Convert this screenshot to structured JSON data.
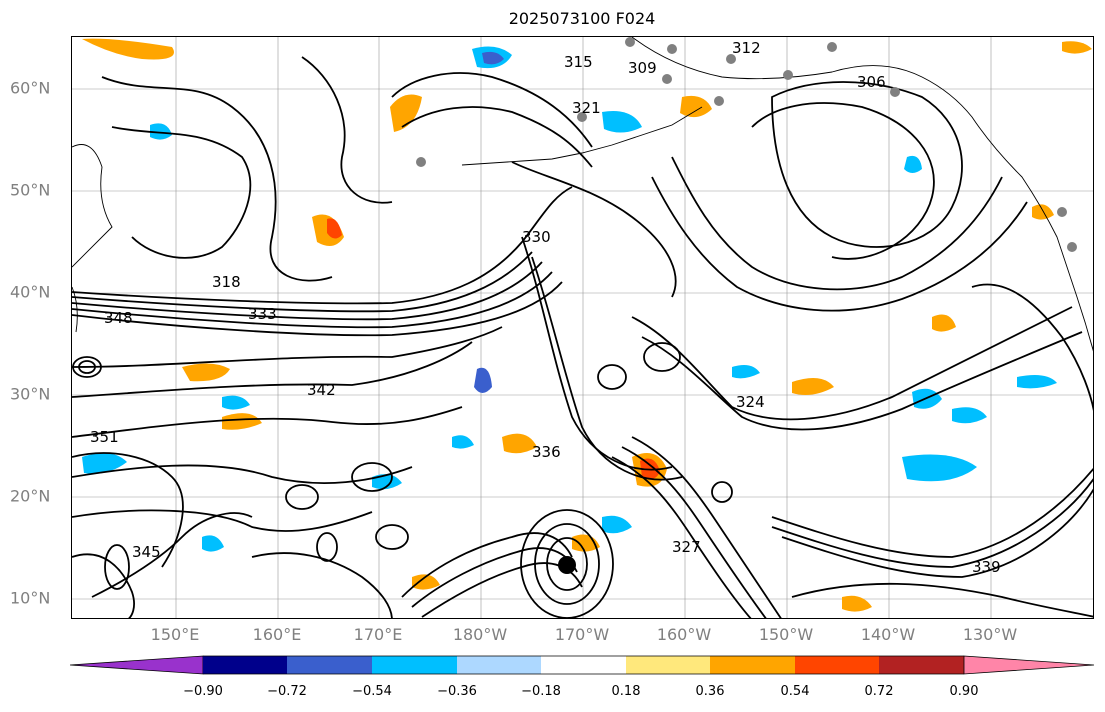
{
  "title": "2025073100 F024",
  "map": {
    "lat_labels": [
      "60°N",
      "50°N",
      "40°N",
      "30°N",
      "20°N",
      "10°N"
    ],
    "lon_labels": [
      "150°E",
      "160°E",
      "170°E",
      "180°W",
      "170°W",
      "160°W",
      "150°W",
      "140°W",
      "130°W"
    ],
    "contour_labels": [
      "312",
      "315",
      "318",
      "321",
      "324",
      "327",
      "330",
      "333",
      "336",
      "339",
      "342",
      "345",
      "348",
      "351",
      "306",
      "309"
    ],
    "contour_color": "#000000",
    "coast_color": "#000000",
    "station_color": "#808080",
    "grid_color": "#808080"
  },
  "colorbar": {
    "ticks": [
      "−0.90",
      "−0.72",
      "−0.54",
      "−0.36",
      "−0.18",
      "0.18",
      "0.36",
      "0.54",
      "0.72",
      "0.90"
    ],
    "colors": [
      "#9932cc",
      "#00008b",
      "#3a5fcd",
      "#00bfff",
      "#add8ff",
      "#ffffff",
      "#ffe87c",
      "#ffa500",
      "#ff4500",
      "#b22222",
      "#ff85a8"
    ]
  }
}
